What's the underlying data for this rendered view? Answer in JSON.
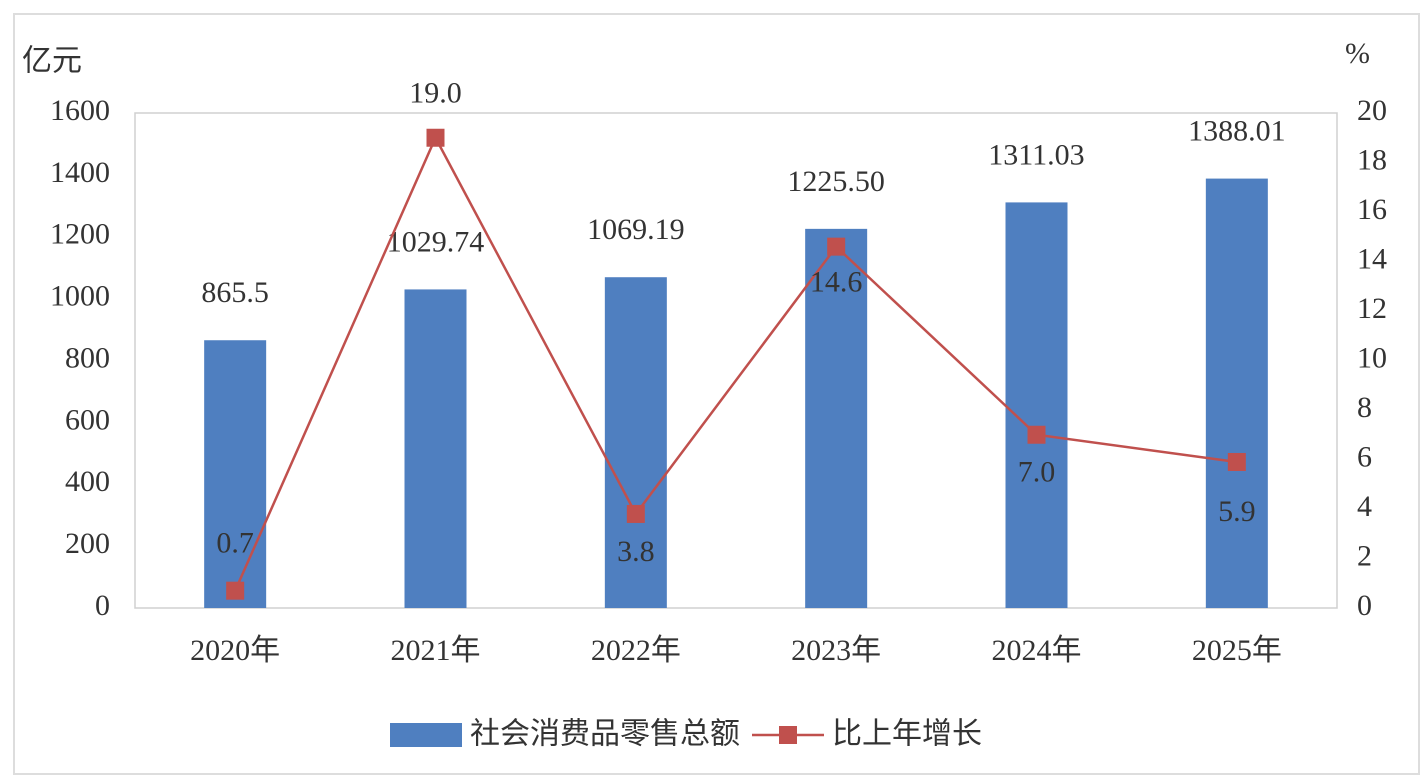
{
  "chart_data": {
    "type": "bar-line",
    "y_label": "亿元",
    "y2_label": "%",
    "categories": [
      "2020年",
      "2021年",
      "2022年",
      "2023年",
      "2024年",
      "2025年"
    ],
    "series": [
      {
        "name": "社会消费品零售总额",
        "type": "bar",
        "color": "#4f7fc0",
        "values": [
          865.5,
          1029.74,
          1069.19,
          1225.5,
          1311.03,
          1388.01
        ],
        "value_labels": [
          "865.5",
          "1029.74",
          "1069.19",
          "1225.50",
          "1311.03",
          "1388.01"
        ]
      },
      {
        "name": "比上年增长",
        "type": "line",
        "axis": "y2",
        "color": "#c0504d",
        "values": [
          0.7,
          19.0,
          3.8,
          14.6,
          7.0,
          5.9
        ],
        "value_labels": [
          "0.7",
          "19.0",
          "3.8",
          "14.6",
          "7.0",
          "5.9"
        ]
      }
    ],
    "ylim": [
      0,
      1600
    ],
    "yticks": [
      0,
      200,
      400,
      600,
      800,
      1000,
      1200,
      1400,
      1600
    ],
    "y2lim": [
      0,
      20
    ],
    "y2ticks": [
      0,
      2,
      4,
      6,
      8,
      10,
      12,
      14,
      16,
      18,
      20
    ],
    "grid": false
  }
}
